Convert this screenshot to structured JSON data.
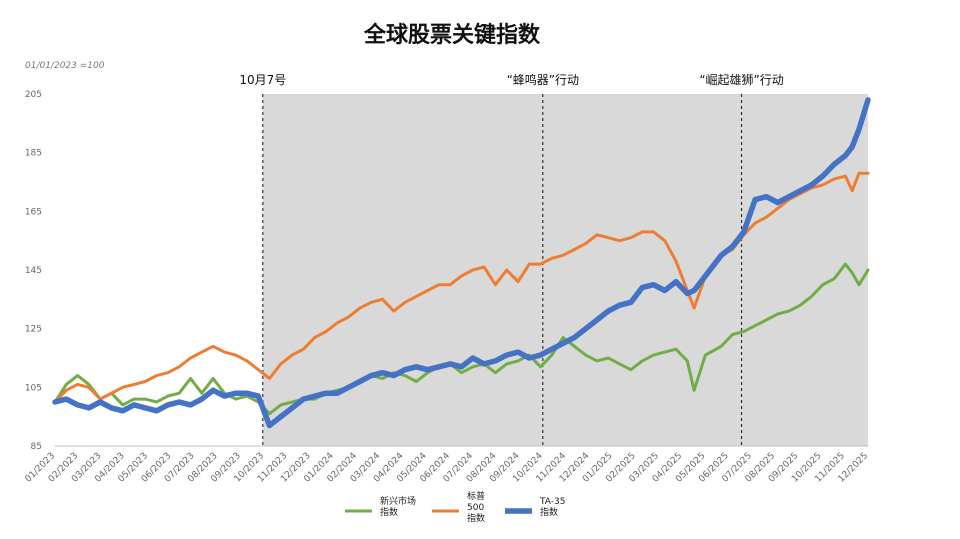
{
  "chart_data": {
    "type": "line",
    "title": "全球股票关键指数",
    "subtitle": "01/01/2023 =100",
    "ylim": [
      85,
      205
    ],
    "yticks": [
      85,
      105,
      125,
      145,
      165,
      185,
      205
    ],
    "xticks": [
      "01/2023",
      "02/2023",
      "03/2023",
      "04/2023",
      "05/2023",
      "06/2023",
      "07/2023",
      "08/2023",
      "09/2023",
      "10/2023",
      "11/2023",
      "12/2023",
      "01/2024",
      "02/2024",
      "03/2024",
      "04/2024",
      "05/2024",
      "06/2024",
      "07/2024",
      "08/2024",
      "09/2024",
      "10/2024",
      "11/2024",
      "12/2024",
      "01/2025",
      "02/2025",
      "03/2025",
      "04/2025",
      "05/2025",
      "06/2025",
      "07/2025",
      "08/2025",
      "09/2025",
      "10/2025",
      "11/2025",
      "12/2025"
    ],
    "x_range": [
      0,
      36
    ],
    "events": [
      {
        "label": "10月7号",
        "x": 9.2
      },
      {
        "label": "“蜂鸣器”行动",
        "x": 21.6
      },
      {
        "label": "“崛起雄狮”行动",
        "x": 30.4
      }
    ],
    "shaded_from": 9.2,
    "series": [
      {
        "name": "新兴市场指数",
        "legend_lines": [
          "新兴市场",
          "指数"
        ],
        "color": "#70ad47",
        "stroke": 3,
        "points": [
          [
            0,
            100
          ],
          [
            0.5,
            106
          ],
          [
            1,
            109
          ],
          [
            1.5,
            106
          ],
          [
            2,
            101
          ],
          [
            2.5,
            103
          ],
          [
            3,
            99
          ],
          [
            3.5,
            101
          ],
          [
            4,
            101
          ],
          [
            4.5,
            100
          ],
          [
            5,
            102
          ],
          [
            5.5,
            103
          ],
          [
            6,
            108
          ],
          [
            6.5,
            103
          ],
          [
            7,
            108
          ],
          [
            7.5,
            103
          ],
          [
            8,
            101
          ],
          [
            8.5,
            102
          ],
          [
            9,
            100
          ],
          [
            9.5,
            96
          ],
          [
            10,
            99
          ],
          [
            10.5,
            100
          ],
          [
            11,
            101
          ],
          [
            11.5,
            101
          ],
          [
            12,
            103
          ],
          [
            12.5,
            104
          ],
          [
            13,
            105
          ],
          [
            13.5,
            107
          ],
          [
            14,
            109
          ],
          [
            14.5,
            108
          ],
          [
            15,
            110
          ],
          [
            15.5,
            109
          ],
          [
            16,
            107
          ],
          [
            16.5,
            110
          ],
          [
            17,
            112
          ],
          [
            17.5,
            113
          ],
          [
            18,
            110
          ],
          [
            18.5,
            112
          ],
          [
            19,
            113
          ],
          [
            19.5,
            110
          ],
          [
            20,
            113
          ],
          [
            20.5,
            114
          ],
          [
            21,
            116
          ],
          [
            21.5,
            112
          ],
          [
            22,
            116
          ],
          [
            22.5,
            122
          ],
          [
            23,
            119
          ],
          [
            23.5,
            116
          ],
          [
            24,
            114
          ],
          [
            24.5,
            115
          ],
          [
            25,
            113
          ],
          [
            25.5,
            111
          ],
          [
            26,
            114
          ],
          [
            26.5,
            116
          ],
          [
            27,
            117
          ],
          [
            27.5,
            118
          ],
          [
            28,
            114
          ],
          [
            28.3,
            104
          ],
          [
            28.8,
            116
          ],
          [
            29.5,
            119
          ],
          [
            30,
            123
          ],
          [
            30.5,
            124
          ],
          [
            31,
            126
          ],
          [
            31.5,
            128
          ],
          [
            32,
            130
          ],
          [
            32.5,
            131
          ],
          [
            33,
            133
          ],
          [
            33.5,
            136
          ],
          [
            34,
            140
          ],
          [
            34.5,
            142
          ],
          [
            35,
            147
          ],
          [
            35.3,
            144
          ],
          [
            35.6,
            140
          ],
          [
            36,
            145
          ]
        ]
      },
      {
        "name": "标普500指数",
        "legend_lines": [
          "标普",
          "500",
          "指数"
        ],
        "color": "#ed7d31",
        "stroke": 3,
        "points": [
          [
            0,
            100
          ],
          [
            0.5,
            104
          ],
          [
            1,
            106
          ],
          [
            1.5,
            105
          ],
          [
            2,
            101
          ],
          [
            2.5,
            103
          ],
          [
            3,
            105
          ],
          [
            3.5,
            106
          ],
          [
            4,
            107
          ],
          [
            4.5,
            109
          ],
          [
            5,
            110
          ],
          [
            5.5,
            112
          ],
          [
            6,
            115
          ],
          [
            6.5,
            117
          ],
          [
            7,
            119
          ],
          [
            7.5,
            117
          ],
          [
            8,
            116
          ],
          [
            8.5,
            114
          ],
          [
            9,
            111
          ],
          [
            9.5,
            108
          ],
          [
            10,
            113
          ],
          [
            10.5,
            116
          ],
          [
            11,
            118
          ],
          [
            11.5,
            122
          ],
          [
            12,
            124
          ],
          [
            12.5,
            127
          ],
          [
            13,
            129
          ],
          [
            13.5,
            132
          ],
          [
            14,
            134
          ],
          [
            14.5,
            135
          ],
          [
            15,
            131
          ],
          [
            15.5,
            134
          ],
          [
            16,
            136
          ],
          [
            16.5,
            138
          ],
          [
            17,
            140
          ],
          [
            17.5,
            140
          ],
          [
            18,
            143
          ],
          [
            18.5,
            145
          ],
          [
            19,
            146
          ],
          [
            19.5,
            140
          ],
          [
            20,
            145
          ],
          [
            20.5,
            141
          ],
          [
            21,
            147
          ],
          [
            21.5,
            147
          ],
          [
            22,
            149
          ],
          [
            22.5,
            150
          ],
          [
            23,
            152
          ],
          [
            23.5,
            154
          ],
          [
            24,
            157
          ],
          [
            24.5,
            156
          ],
          [
            25,
            155
          ],
          [
            25.5,
            156
          ],
          [
            26,
            158
          ],
          [
            26.5,
            158
          ],
          [
            27,
            155
          ],
          [
            27.5,
            148
          ],
          [
            28,
            138
          ],
          [
            28.3,
            132
          ],
          [
            28.8,
            143
          ],
          [
            29.5,
            150
          ],
          [
            30,
            152
          ],
          [
            30.5,
            157
          ],
          [
            31,
            161
          ],
          [
            31.5,
            163
          ],
          [
            32,
            166
          ],
          [
            32.5,
            169
          ],
          [
            33,
            171
          ],
          [
            33.5,
            173
          ],
          [
            34,
            174
          ],
          [
            34.5,
            176
          ],
          [
            35,
            177
          ],
          [
            35.3,
            172
          ],
          [
            35.6,
            178
          ],
          [
            36,
            178
          ]
        ]
      },
      {
        "name": "TA-35指数",
        "legend_lines": [
          "TA-35",
          "指数"
        ],
        "color": "#4472c4",
        "stroke": 5.5,
        "points": [
          [
            0,
            100
          ],
          [
            0.5,
            101
          ],
          [
            1,
            99
          ],
          [
            1.5,
            98
          ],
          [
            2,
            100
          ],
          [
            2.5,
            98
          ],
          [
            3,
            97
          ],
          [
            3.5,
            99
          ],
          [
            4,
            98
          ],
          [
            4.5,
            97
          ],
          [
            5,
            99
          ],
          [
            5.5,
            100
          ],
          [
            6,
            99
          ],
          [
            6.5,
            101
          ],
          [
            7,
            104
          ],
          [
            7.5,
            102
          ],
          [
            8,
            103
          ],
          [
            8.5,
            103
          ],
          [
            9,
            102
          ],
          [
            9.5,
            92
          ],
          [
            10,
            95
          ],
          [
            10.5,
            98
          ],
          [
            11,
            101
          ],
          [
            11.5,
            102
          ],
          [
            12,
            103
          ],
          [
            12.5,
            103
          ],
          [
            13,
            105
          ],
          [
            13.5,
            107
          ],
          [
            14,
            109
          ],
          [
            14.5,
            110
          ],
          [
            15,
            109
          ],
          [
            15.5,
            111
          ],
          [
            16,
            112
          ],
          [
            16.5,
            111
          ],
          [
            17,
            112
          ],
          [
            17.5,
            113
          ],
          [
            18,
            112
          ],
          [
            18.5,
            115
          ],
          [
            19,
            113
          ],
          [
            19.5,
            114
          ],
          [
            20,
            116
          ],
          [
            20.5,
            117
          ],
          [
            21,
            115
          ],
          [
            21.5,
            116
          ],
          [
            22,
            118
          ],
          [
            22.5,
            120
          ],
          [
            23,
            122
          ],
          [
            23.5,
            125
          ],
          [
            24,
            128
          ],
          [
            24.5,
            131
          ],
          [
            25,
            133
          ],
          [
            25.5,
            134
          ],
          [
            26,
            139
          ],
          [
            26.5,
            140
          ],
          [
            27,
            138
          ],
          [
            27.5,
            141
          ],
          [
            28,
            137
          ],
          [
            28.3,
            138
          ],
          [
            28.8,
            143
          ],
          [
            29.5,
            150
          ],
          [
            30,
            153
          ],
          [
            30.5,
            158
          ],
          [
            31,
            169
          ],
          [
            31.5,
            170
          ],
          [
            32,
            168
          ],
          [
            32.5,
            170
          ],
          [
            33,
            172
          ],
          [
            33.5,
            174
          ],
          [
            34,
            177
          ],
          [
            34.5,
            181
          ],
          [
            35,
            184
          ],
          [
            35.3,
            187
          ],
          [
            35.6,
            193
          ],
          [
            36,
            203
          ]
        ]
      }
    ]
  }
}
